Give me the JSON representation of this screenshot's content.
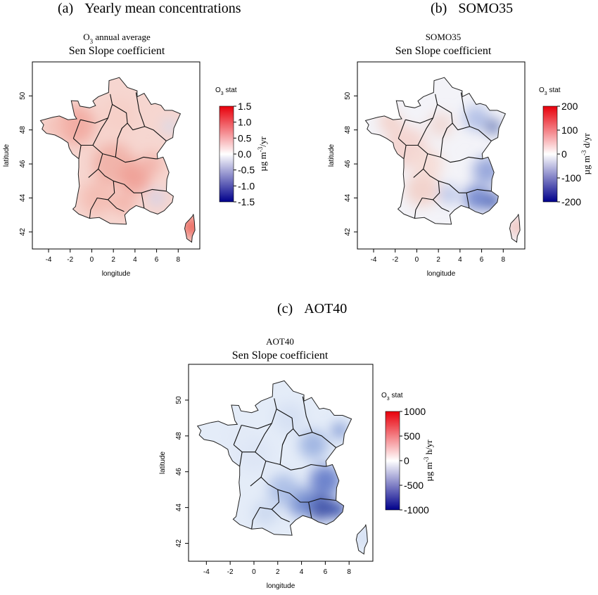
{
  "panels": [
    {
      "id": "a",
      "label": "(a)",
      "heading": "Yearly mean concentrations",
      "plot_title": "O3 annual average",
      "plot_subtitle": "Sen Slope coefficient",
      "stat_label": "O3 stat",
      "unit": "µg m-3/yr",
      "colorbar_ticks": [
        "1.5",
        "1.0",
        "0.5",
        "0.0",
        "-0.5",
        "-1.0",
        "-1.5"
      ],
      "colorbar_range": [
        -1.5,
        1.5
      ],
      "trend_pattern": "mostly positive (red) trends, strongest in Corsica and the west; weak negative spots in the south-east",
      "colors": {
        "high": "#e8000b",
        "mid": "#ffffff",
        "low": "#00008b"
      }
    },
    {
      "id": "b",
      "label": "(b)",
      "heading": "SOMO35",
      "plot_title": "SOMO35",
      "plot_subtitle": "Sen Slope coefficient",
      "stat_label": "O3 stat",
      "unit": "µg m-3 d/yr",
      "colorbar_ticks": [
        "200",
        "100",
        "0",
        "-100",
        "-200"
      ],
      "colorbar_range": [
        -200,
        200
      ],
      "trend_pattern": "negative (blue) trends in the east and south-east, weak positive in the west and Corsica",
      "colors": {
        "high": "#e8000b",
        "mid": "#ffffff",
        "low": "#00008b"
      }
    },
    {
      "id": "c",
      "label": "(c)",
      "heading": "AOT40",
      "plot_title": "AOT40",
      "plot_subtitle": "Sen Slope coefficient",
      "stat_label": "O3 stat",
      "unit": "µg m-3 h/yr",
      "colorbar_ticks": [
        "1000",
        "500",
        "0",
        "-500",
        "-1000"
      ],
      "colorbar_range": [
        -1000,
        1000
      ],
      "trend_pattern": "negative (blue) trends almost everywhere, strongest in the south-east",
      "colors": {
        "high": "#e8000b",
        "mid": "#ffffff",
        "low": "#00008b"
      }
    }
  ],
  "axes": {
    "xlabel": "longitude",
    "ylabel": "latitude",
    "x_ticks": [
      "-4",
      "-2",
      "0",
      "2",
      "4",
      "6",
      "8"
    ],
    "y_ticks": [
      "42",
      "44",
      "46",
      "48",
      "50"
    ],
    "lon_range": [
      -5.5,
      10
    ],
    "lat_range": [
      41,
      52
    ]
  }
}
